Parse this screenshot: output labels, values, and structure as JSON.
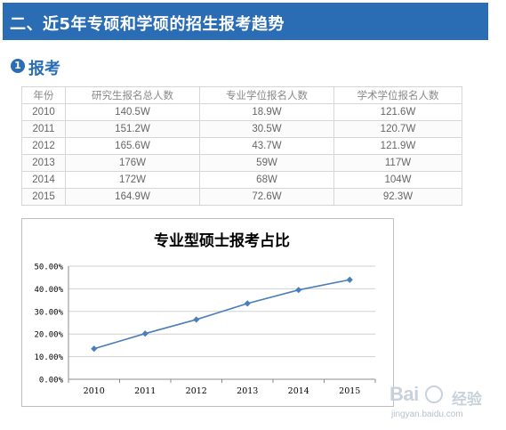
{
  "header": {
    "title": "二、近5年专硕和学硕的招生报考趋势"
  },
  "section": {
    "badge": "1",
    "title": "报考"
  },
  "table": {
    "columns": [
      "年份",
      "研究生报名总人数",
      "专业学位报名人数",
      "学术学位报名人数"
    ],
    "rows": [
      [
        "2010",
        "140.5W",
        "18.9W",
        "121.6W"
      ],
      [
        "2011",
        "151.2W",
        "30.5W",
        "120.7W"
      ],
      [
        "2012",
        "165.6W",
        "43.7W",
        "121.9W"
      ],
      [
        "2013",
        "176W",
        "59W",
        "117W"
      ],
      [
        "2014",
        "172W",
        "68W",
        "104W"
      ],
      [
        "2015",
        "164.9W",
        "72.6W",
        "92.3W"
      ]
    ]
  },
  "chart_data": {
    "type": "line",
    "title": "专业型硕士报考占比",
    "x": [
      "2010",
      "2011",
      "2012",
      "2013",
      "2014",
      "2015"
    ],
    "values": [
      13.5,
      20.2,
      26.4,
      33.5,
      39.5,
      44.0
    ],
    "y_ticks": [
      "0.00%",
      "10.00%",
      "20.00%",
      "30.00%",
      "40.00%",
      "50.00%"
    ],
    "ylim": [
      0,
      50
    ],
    "grid": true,
    "legend": false,
    "color": "#4a7ebb"
  },
  "watermark": {
    "logo_left": "Bai",
    "logo_mid": "经验",
    "url": "jingyan.baidu.com"
  }
}
